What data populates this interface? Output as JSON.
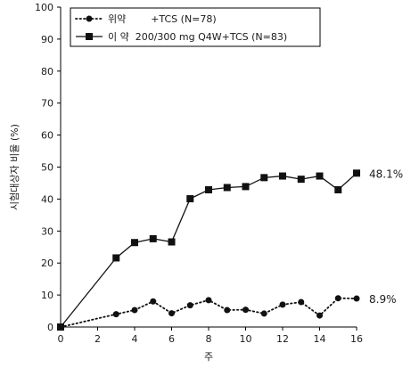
{
  "chart_data": {
    "type": "line",
    "title": "",
    "xlabel": "주",
    "ylabel": "시험대상자 비율 (%)",
    "xlim": [
      0,
      16
    ],
    "ylim": [
      0,
      100
    ],
    "x_ticks": [
      "0",
      "2",
      "4",
      "6",
      "8",
      "10",
      "12",
      "14",
      "16"
    ],
    "y_ticks": [
      "0",
      "10",
      "20",
      "30",
      "40",
      "50",
      "60",
      "70",
      "80",
      "90",
      "100"
    ],
    "grid": false,
    "legend_position": "top-left",
    "series": [
      {
        "name": "위약        +TCS (N=78)",
        "marker": "circle",
        "line_style": "dotted",
        "color": "#111111",
        "points": [
          {
            "x": 0,
            "y": 0
          },
          {
            "x": 3,
            "y": 4.0
          },
          {
            "x": 4,
            "y": 5.3
          },
          {
            "x": 5,
            "y": 8.0
          },
          {
            "x": 6,
            "y": 4.3
          },
          {
            "x": 7,
            "y": 6.8
          },
          {
            "x": 8,
            "y": 8.4
          },
          {
            "x": 9,
            "y": 5.3
          },
          {
            "x": 10,
            "y": 5.4
          },
          {
            "x": 11,
            "y": 4.2
          },
          {
            "x": 12,
            "y": 7.0
          },
          {
            "x": 13,
            "y": 7.8
          },
          {
            "x": 14,
            "y": 3.6
          },
          {
            "x": 15,
            "y": 9.0
          },
          {
            "x": 16,
            "y": 8.9
          }
        ],
        "end_label": "8.9%"
      },
      {
        "name": "이 약  200/300 mg Q4W+TCS (N=83)",
        "marker": "square",
        "line_style": "solid",
        "color": "#111111",
        "points": [
          {
            "x": 0,
            "y": 0
          },
          {
            "x": 3,
            "y": 21.6
          },
          {
            "x": 4,
            "y": 26.4
          },
          {
            "x": 5,
            "y": 27.6
          },
          {
            "x": 6,
            "y": 26.6
          },
          {
            "x": 7,
            "y": 40.1
          },
          {
            "x": 8,
            "y": 42.9
          },
          {
            "x": 9,
            "y": 43.6
          },
          {
            "x": 10,
            "y": 43.9
          },
          {
            "x": 11,
            "y": 46.7
          },
          {
            "x": 12,
            "y": 47.2
          },
          {
            "x": 13,
            "y": 46.2
          },
          {
            "x": 14,
            "y": 47.2
          },
          {
            "x": 15,
            "y": 42.9
          },
          {
            "x": 16,
            "y": 48.1
          }
        ],
        "end_label": "48.1%"
      }
    ]
  }
}
